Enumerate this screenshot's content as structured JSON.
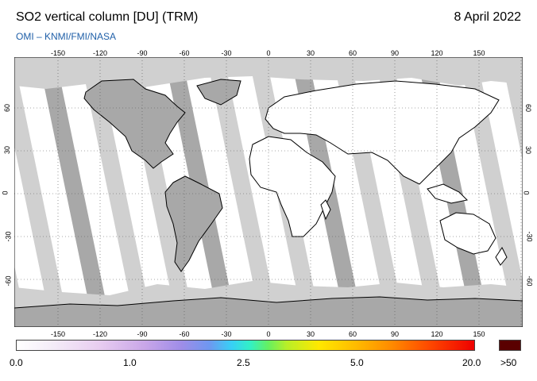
{
  "header": {
    "title": "SO2 vertical column [DU] (TRM)",
    "date": "8 April 2022",
    "credit": "OMI  –  KNMI/FMI/NASA"
  },
  "axes": {
    "lon_ticks": [
      "-150",
      "-120",
      "-90",
      "-60",
      "-30",
      "0",
      "30",
      "60",
      "90",
      "120",
      "150"
    ],
    "lat_ticks": [
      "60",
      "30",
      "0",
      "-30",
      "-60"
    ]
  },
  "colorbar": {
    "labels": [
      "0.0",
      "1.0",
      "2.5",
      "5.0",
      "20.0"
    ],
    "max_label": ">50",
    "max_color": "#5a0000"
  },
  "colors": {
    "no_data": "#d0d0d0",
    "land_overlay": "#a8a8a8",
    "coastline": "#000000",
    "gridline": "#555555"
  }
}
